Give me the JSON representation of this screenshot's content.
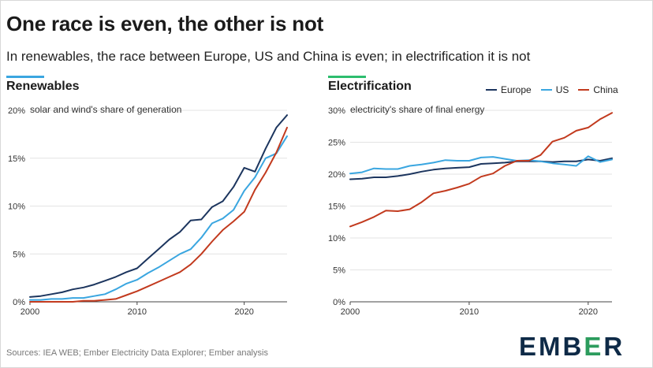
{
  "title": "One race is even, the other is not",
  "subtitle": "In renewables, the race between Europe, US and China is even; in electrification it is not",
  "source": "Sources: IEA WEB; Ember Electricity Data Explorer; Ember analysis",
  "logo": {
    "part1": "EMB",
    "mid": "E",
    "part2": "R"
  },
  "colors": {
    "Europe": "#1c355e",
    "US": "#3aa6e0",
    "China": "#c23a1e",
    "renewables_bar": "#3aa6e0",
    "electrification_bar": "#2dbd6e"
  },
  "legend": [
    {
      "name": "Europe",
      "color": "#1c355e"
    },
    {
      "name": "US",
      "color": "#3aa6e0"
    },
    {
      "name": "China",
      "color": "#c23a1e"
    }
  ],
  "chart_data": [
    {
      "type": "line",
      "panel_title": "Renewables",
      "ylabel": "solar and wind's share of generation",
      "x_ticks": [
        "2000",
        "2010",
        "2020"
      ],
      "y_ticks": [
        "0%",
        "5%",
        "10%",
        "15%",
        "20%"
      ],
      "xlim": [
        2000,
        2024
      ],
      "ylim": [
        0,
        20
      ],
      "grid": true,
      "x": [
        2000,
        2001,
        2002,
        2003,
        2004,
        2005,
        2006,
        2007,
        2008,
        2009,
        2010,
        2011,
        2012,
        2013,
        2014,
        2015,
        2016,
        2017,
        2018,
        2019,
        2020,
        2021,
        2022,
        2023,
        2024
      ],
      "series": [
        {
          "name": "Europe",
          "values": [
            0.5,
            0.6,
            0.8,
            1.0,
            1.3,
            1.5,
            1.8,
            2.2,
            2.6,
            3.1,
            3.5,
            4.5,
            5.5,
            6.5,
            7.3,
            8.5,
            8.6,
            9.9,
            10.5,
            12.0,
            14.0,
            13.6,
            16.0,
            18.2,
            19.5
          ]
        },
        {
          "name": "US",
          "values": [
            0.2,
            0.2,
            0.3,
            0.3,
            0.4,
            0.4,
            0.6,
            0.8,
            1.3,
            1.9,
            2.3,
            3.0,
            3.6,
            4.3,
            5.0,
            5.5,
            6.7,
            8.2,
            8.7,
            9.6,
            11.6,
            13.0,
            15.0,
            15.5,
            17.3
          ]
        },
        {
          "name": "China",
          "values": [
            0.0,
            0.0,
            0.0,
            0.0,
            0.0,
            0.1,
            0.1,
            0.2,
            0.3,
            0.7,
            1.1,
            1.6,
            2.1,
            2.6,
            3.1,
            3.9,
            5.0,
            6.3,
            7.5,
            8.4,
            9.4,
            11.7,
            13.5,
            15.6,
            18.2
          ]
        }
      ]
    },
    {
      "type": "line",
      "panel_title": "Electrification",
      "ylabel": "electricity's share of final energy",
      "x_ticks": [
        "2000",
        "2010",
        "2020"
      ],
      "y_ticks": [
        "0%",
        "5%",
        "10%",
        "15%",
        "20%",
        "25%",
        "30%"
      ],
      "xlim": [
        2000,
        2022
      ],
      "ylim": [
        0,
        30
      ],
      "grid": true,
      "x": [
        2000,
        2001,
        2002,
        2003,
        2004,
        2005,
        2006,
        2007,
        2008,
        2009,
        2010,
        2011,
        2012,
        2013,
        2014,
        2015,
        2016,
        2017,
        2018,
        2019,
        2020,
        2021,
        2022
      ],
      "series": [
        {
          "name": "Europe",
          "values": [
            19.2,
            19.3,
            19.5,
            19.5,
            19.7,
            20.0,
            20.4,
            20.7,
            20.9,
            21.0,
            21.1,
            21.6,
            21.7,
            21.8,
            22.0,
            22.0,
            22.0,
            21.9,
            22.0,
            22.0,
            22.3,
            22.1,
            22.5
          ]
        },
        {
          "name": "US",
          "values": [
            20.1,
            20.3,
            20.9,
            20.8,
            20.8,
            21.3,
            21.5,
            21.8,
            22.2,
            22.1,
            22.1,
            22.6,
            22.7,
            22.4,
            22.1,
            22.2,
            22.0,
            21.7,
            21.5,
            21.3,
            22.8,
            21.9,
            22.3
          ]
        },
        {
          "name": "China",
          "values": [
            11.8,
            12.5,
            13.3,
            14.3,
            14.2,
            14.5,
            15.6,
            17.0,
            17.4,
            17.9,
            18.5,
            19.6,
            20.1,
            21.3,
            22.1,
            22.1,
            23.0,
            25.1,
            25.7,
            26.8,
            27.3,
            28.6,
            29.6
          ]
        }
      ]
    }
  ]
}
